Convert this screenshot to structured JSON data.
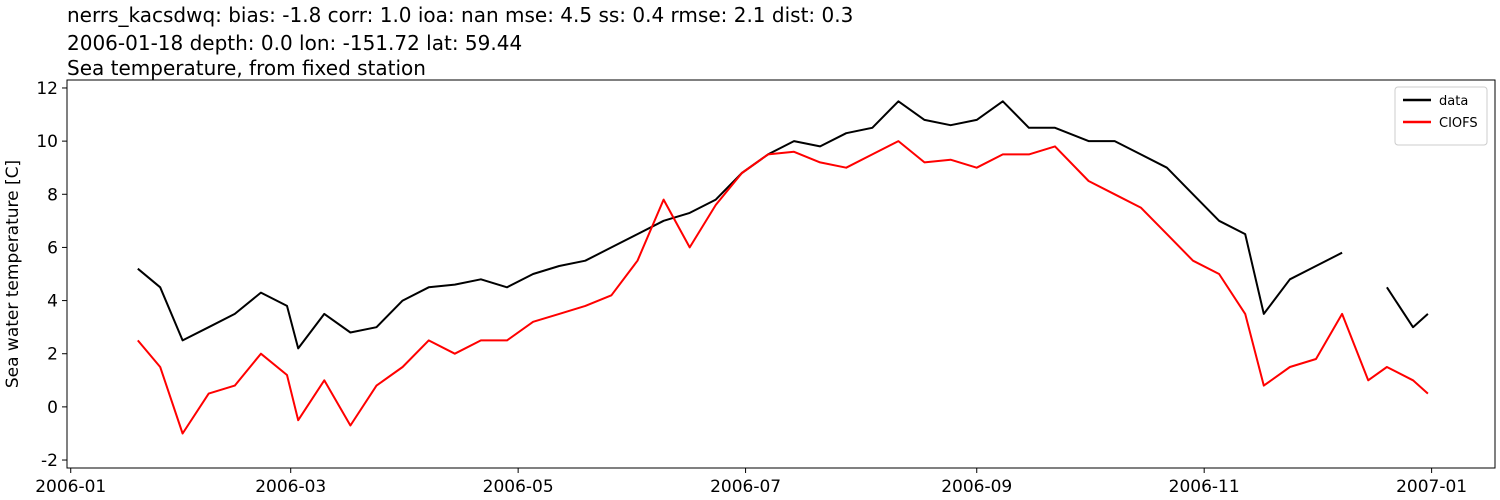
{
  "chart_data": {
    "type": "line",
    "title_lines": [
      "nerrs_kacsdwq: bias: -1.8  corr: 1.0  ioa: nan  mse: 4.5  ss: 0.4  rmse: 2.1  dist: 0.3",
      "2006-01-18 depth: 0.0 lon: -151.72 lat: 59.44",
      "Sea temperature, from fixed station"
    ],
    "y_label": "Sea water temperature [C]",
    "x": [
      "2006-01-19",
      "2006-01-25",
      "2006-01-31",
      "2006-02-07",
      "2006-02-14",
      "2006-02-21",
      "2006-02-28",
      "2006-03-03",
      "2006-03-10",
      "2006-03-17",
      "2006-03-24",
      "2006-03-31",
      "2006-04-07",
      "2006-04-14",
      "2006-04-21",
      "2006-04-28",
      "2006-05-05",
      "2006-05-12",
      "2006-05-19",
      "2006-05-26",
      "2006-06-02",
      "2006-06-09",
      "2006-06-16",
      "2006-06-23",
      "2006-06-30",
      "2006-07-07",
      "2006-07-14",
      "2006-07-21",
      "2006-07-28",
      "2006-08-04",
      "2006-08-11",
      "2006-08-18",
      "2006-08-25",
      "2006-09-01",
      "2006-09-08",
      "2006-09-15",
      "2006-09-22",
      "2006-10-01",
      "2006-10-08",
      "2006-10-15",
      "2006-10-22",
      "2006-10-29",
      "2006-11-05",
      "2006-11-12",
      "2006-11-17",
      "2006-11-24",
      "2006-12-01",
      "2006-12-08",
      "2006-12-15",
      "2006-12-20",
      "2006-12-27",
      "2006-12-31"
    ],
    "series": [
      {
        "name": "data",
        "color": "#000000",
        "values": [
          5.2,
          4.5,
          2.5,
          3.0,
          3.5,
          4.3,
          3.8,
          2.2,
          3.5,
          2.8,
          3.0,
          4.0,
          4.5,
          4.6,
          4.8,
          4.5,
          5.0,
          5.3,
          5.5,
          6.0,
          6.5,
          7.0,
          7.3,
          7.8,
          8.8,
          9.5,
          10.0,
          9.8,
          10.3,
          10.5,
          11.5,
          10.8,
          10.6,
          10.8,
          11.5,
          10.5,
          10.5,
          10.0,
          10.0,
          9.5,
          9.0,
          8.0,
          7.0,
          6.5,
          3.5,
          4.8,
          5.3,
          5.8,
          null,
          4.5,
          3.0,
          3.5
        ]
      },
      {
        "name": "CIOFS",
        "color": "#ff0000",
        "values": [
          2.5,
          1.5,
          -1.0,
          0.5,
          0.8,
          2.0,
          1.2,
          -0.5,
          1.0,
          -0.7,
          0.8,
          1.5,
          2.5,
          2.0,
          2.5,
          2.5,
          3.2,
          3.5,
          3.8,
          4.2,
          5.5,
          7.8,
          6.0,
          7.6,
          8.8,
          9.5,
          9.6,
          9.2,
          9.0,
          9.5,
          10.0,
          9.2,
          9.3,
          9.0,
          9.5,
          9.5,
          9.8,
          8.5,
          8.0,
          7.5,
          6.5,
          5.5,
          5.0,
          3.5,
          0.8,
          1.5,
          1.8,
          3.5,
          1.0,
          1.5,
          1.0,
          0.5
        ]
      }
    ],
    "xlim": [
      "2005-12-31",
      "2007-01-18"
    ],
    "xticks": [
      {
        "value": "2006-01-01",
        "label": "2006-01"
      },
      {
        "value": "2006-03-01",
        "label": "2006-03"
      },
      {
        "value": "2006-05-01",
        "label": "2006-05"
      },
      {
        "value": "2006-07-01",
        "label": "2006-07"
      },
      {
        "value": "2006-09-01",
        "label": "2006-09"
      },
      {
        "value": "2006-11-01",
        "label": "2006-11"
      },
      {
        "value": "2007-01-01",
        "label": "2007-01"
      }
    ],
    "ylim": [
      -2.3,
      12.3
    ],
    "yticks": [
      -2,
      0,
      2,
      4,
      6,
      8,
      10,
      12
    ],
    "grid": false,
    "legend": "upper right"
  }
}
